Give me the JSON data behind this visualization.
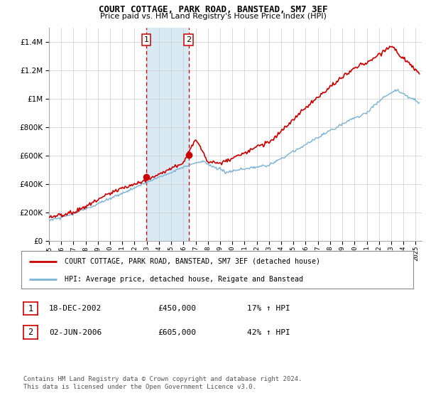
{
  "title": "COURT COTTAGE, PARK ROAD, BANSTEAD, SM7 3EF",
  "subtitle": "Price paid vs. HM Land Registry's House Price Index (HPI)",
  "legend_line1": "COURT COTTAGE, PARK ROAD, BANSTEAD, SM7 3EF (detached house)",
  "legend_line2": "HPI: Average price, detached house, Reigate and Banstead",
  "transaction1_date": "18-DEC-2002",
  "transaction1_price": "£450,000",
  "transaction1_hpi": "17% ↑ HPI",
  "transaction2_date": "02-JUN-2006",
  "transaction2_price": "£605,000",
  "transaction2_hpi": "42% ↑ HPI",
  "footer": "Contains HM Land Registry data © Crown copyright and database right 2024.\nThis data is licensed under the Open Government Licence v3.0.",
  "red_color": "#cc0000",
  "blue_color": "#7ab3d4",
  "highlight_color": "#daeaf5",
  "dashed_color": "#cc0000",
  "ylim_min": 0,
  "ylim_max": 1500000,
  "start_year": 1995,
  "end_year": 2025,
  "transaction1_year": 2002.96,
  "transaction2_year": 2006.42,
  "yticks": [
    0,
    200000,
    400000,
    600000,
    800000,
    1000000,
    1200000,
    1400000
  ]
}
